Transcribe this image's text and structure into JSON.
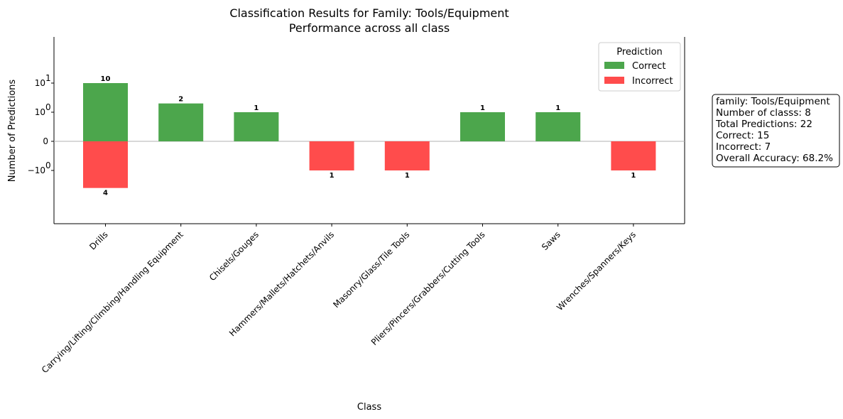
{
  "chart_data": {
    "type": "bar",
    "title": "Classification Results for Family: Tools/Equipment",
    "subtitle": "Performance across all class",
    "xlabel": "Class",
    "ylabel": "Number of Predictions",
    "yscale": "symlog",
    "ylim": [
      -4.5,
      14
    ],
    "categories": [
      "Drills",
      "Carrying/Lifting/Climbing/Handling Equipment",
      "Chisels/Gouges",
      "Hammers/Mallets/Hatchets/Anvils",
      "Masonry/Glass/Tile Tools",
      "Pliers/Pincers/Grabbers/Cutting Tools",
      "Saws",
      "Wrenches/Spanners/Keys"
    ],
    "series": [
      {
        "name": "Correct",
        "values": [
          10,
          2,
          1,
          0,
          0,
          1,
          1,
          0
        ]
      },
      {
        "name": "Incorrect",
        "values": [
          4,
          0,
          0,
          1,
          1,
          0,
          0,
          1
        ]
      }
    ],
    "y_ticks": [
      {
        "value": 10,
        "label_base": "10",
        "label_exp": "1"
      },
      {
        "value": 1,
        "label_base": "10",
        "label_exp": "0"
      },
      {
        "value": 0,
        "label_base": "0",
        "label_exp": ""
      },
      {
        "value": -1,
        "label_base": "−10",
        "label_exp": "0"
      }
    ],
    "legend": {
      "title": "Prediction",
      "placement": "top-right",
      "entries": [
        "Correct",
        "Incorrect"
      ]
    },
    "grid": false
  },
  "colors": {
    "correct": "#4ca64c",
    "incorrect": "#ff4c4c",
    "zero_line": "#b0b0b0"
  },
  "stats_box": {
    "lines": [
      "family: Tools/Equipment",
      "Number of classs: 8",
      "Total Predictions: 22",
      "Correct: 15",
      "Incorrect: 7",
      "Overall Accuracy: 68.2%"
    ]
  }
}
